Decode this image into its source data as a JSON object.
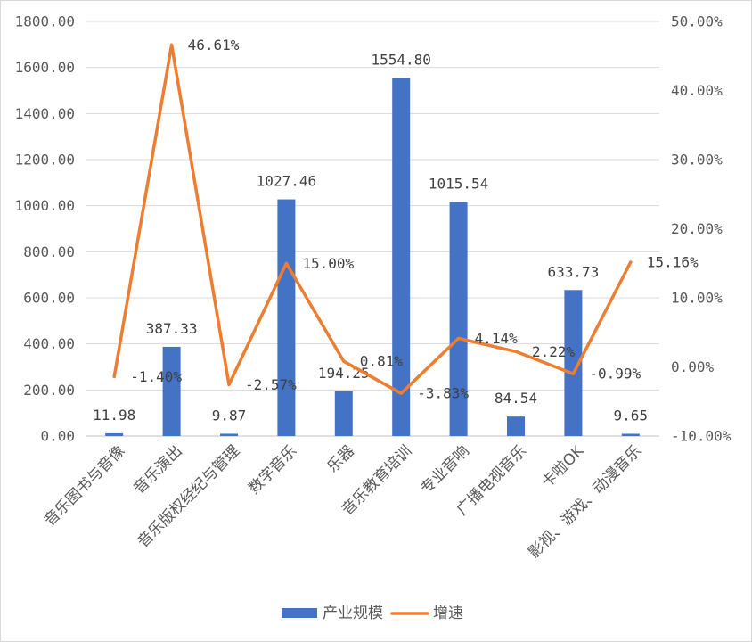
{
  "chart_data": {
    "type": "bar",
    "categories": [
      "音乐图书与音像",
      "音乐演出",
      "音乐版权经纪与管理",
      "数字音乐",
      "乐器",
      "音乐教育培训",
      "专业音响",
      "广播电视音乐",
      "卡啦OK",
      "影视、游戏、动漫音乐"
    ],
    "series": [
      {
        "name": "产业规模",
        "type": "bar",
        "axis": "left",
        "color": "#4472C4",
        "values": [
          11.98,
          387.33,
          9.87,
          1027.46,
          194.25,
          1554.8,
          1015.54,
          84.54,
          633.73,
          9.65
        ]
      },
      {
        "name": "增速",
        "type": "line",
        "axis": "right",
        "unit": "%",
        "color": "#ED7D31",
        "values": [
          -1.4,
          46.61,
          -2.57,
          15.0,
          0.81,
          -3.83,
          4.14,
          2.22,
          -0.99,
          15.16
        ]
      }
    ],
    "y_left": {
      "range": [
        0,
        1800
      ],
      "ticks": [
        "0.00",
        "200.00",
        "400.00",
        "600.00",
        "800.00",
        "1000.00",
        "1200.00",
        "1400.00",
        "1600.00",
        "1800.00"
      ]
    },
    "y_right": {
      "range": [
        -10,
        50
      ],
      "ticks": [
        "-10.00%",
        "0.00%",
        "10.00%",
        "20.00%",
        "30.00%",
        "40.00%",
        "50.00%"
      ]
    },
    "grid": true,
    "legend": "bottom",
    "colors": {
      "grid": "#D9D9D9",
      "axis": "#BFBFBF",
      "text": "#595959"
    }
  }
}
